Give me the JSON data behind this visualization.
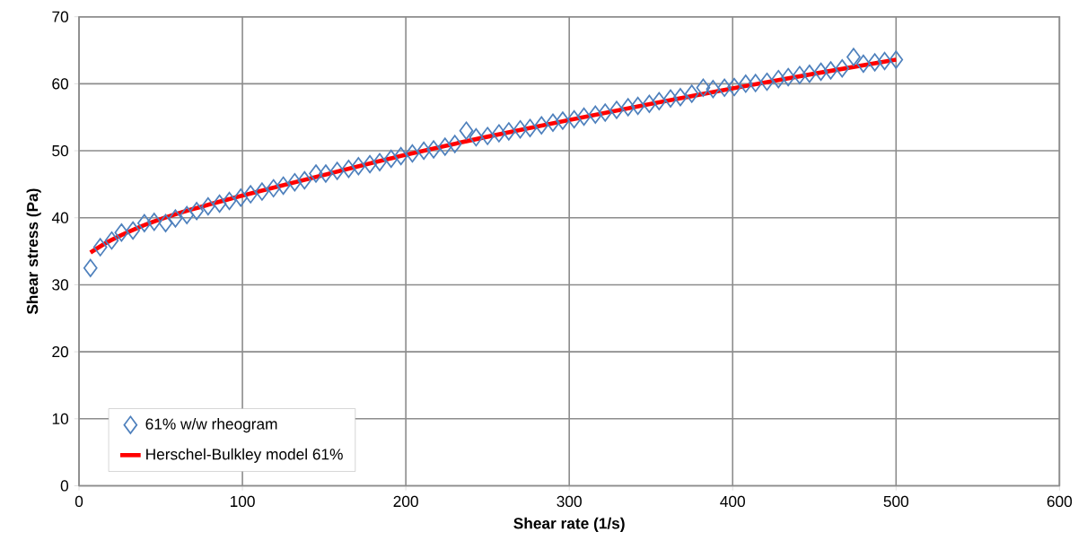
{
  "chart_data": {
    "type": "scatter",
    "xlabel": "Shear rate (1/s)",
    "ylabel": "Shear stress (Pa)",
    "xlim": [
      0,
      600
    ],
    "ylim": [
      0,
      70
    ],
    "xticks": [
      0,
      100,
      200,
      300,
      400,
      500,
      600
    ],
    "yticks": [
      0,
      10,
      20,
      30,
      40,
      50,
      60,
      70
    ],
    "grid": true,
    "legend": "bottom left",
    "series": [
      {
        "name": "61% w/w rheogram",
        "color": "#4f81bd",
        "marker": "diamond",
        "x": [
          7,
          13,
          20,
          26,
          33,
          40,
          46,
          53,
          59,
          66,
          72,
          79,
          86,
          92,
          99,
          105,
          112,
          119,
          125,
          132,
          138,
          145,
          151,
          158,
          165,
          171,
          178,
          184,
          191,
          197,
          204,
          211,
          217,
          224,
          230,
          237,
          243,
          250,
          257,
          263,
          270,
          276,
          283,
          290,
          296,
          303,
          309,
          316,
          322,
          329,
          336,
          342,
          349,
          355,
          362,
          368,
          375,
          382,
          388,
          395,
          401,
          408,
          414,
          421,
          428,
          434,
          441,
          447,
          454,
          460,
          467,
          474,
          480,
          487,
          493,
          500
        ],
        "values": [
          32.5,
          35.6,
          36.6,
          37.8,
          38.1,
          39.2,
          39.4,
          39.2,
          39.9,
          40.4,
          41.0,
          41.7,
          42.1,
          42.5,
          43.0,
          43.5,
          43.9,
          44.4,
          44.8,
          45.3,
          45.6,
          46.6,
          46.6,
          47.0,
          47.3,
          47.7,
          48.0,
          48.3,
          48.8,
          49.2,
          49.6,
          50.0,
          50.2,
          50.6,
          51.0,
          53.0,
          52.0,
          52.2,
          52.6,
          52.9,
          53.2,
          53.4,
          53.8,
          54.2,
          54.5,
          54.7,
          55.1,
          55.4,
          55.7,
          56.1,
          56.5,
          56.7,
          57.0,
          57.4,
          57.8,
          58.0,
          58.5,
          59.4,
          59.2,
          59.4,
          59.5,
          60.0,
          60.1,
          60.3,
          60.7,
          61.0,
          61.3,
          61.5,
          61.8,
          62.0,
          62.3,
          64.0,
          63.0,
          63.2,
          63.4,
          63.6
        ]
      },
      {
        "name": "Herschel-Bulkley model 61%",
        "type": "line",
        "color": "#ff0000",
        "marker": "none",
        "x": [
          7,
          20,
          40,
          60,
          80,
          100,
          150,
          200,
          250,
          300,
          350,
          400,
          450,
          500
        ],
        "values": [
          34.8,
          36.7,
          38.9,
          40.6,
          42.0,
          43.3,
          46.4,
          49.4,
          52.1,
          54.6,
          57.0,
          59.3,
          61.5,
          63.6
        ]
      }
    ]
  }
}
